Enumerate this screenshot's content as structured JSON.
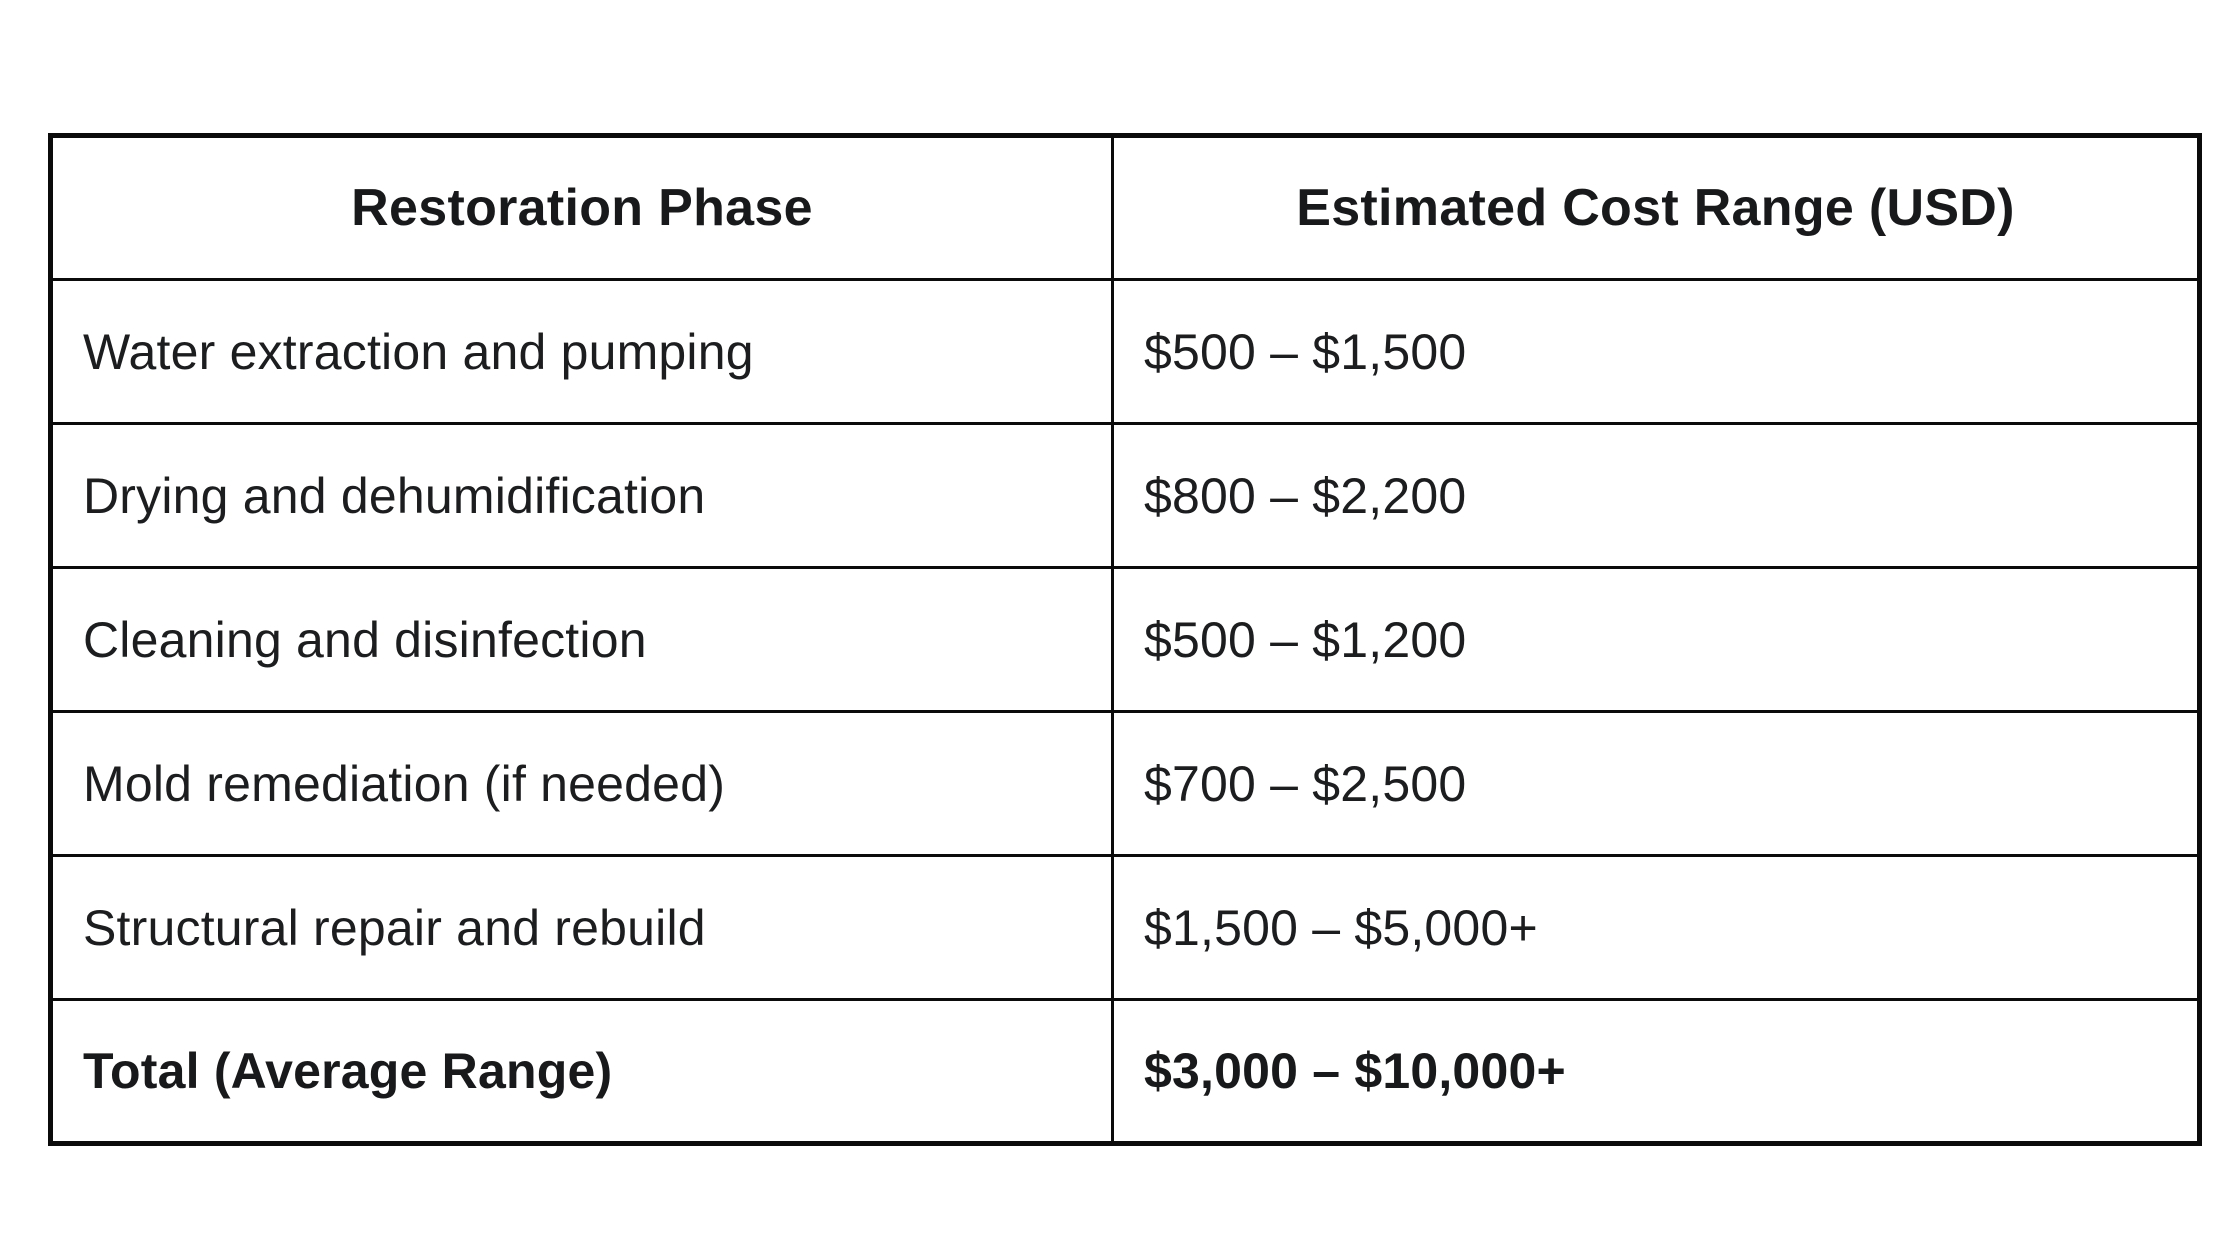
{
  "table": {
    "header": [
      "Restoration Phase",
      "Estimated Cost Range (USD)"
    ],
    "rows": [
      {
        "phase": "Water extraction and pumping",
        "cost": "$500 – $1,500"
      },
      {
        "phase": "Drying and dehumidification",
        "cost": "$800 – $2,200"
      },
      {
        "phase": "Cleaning and disinfection",
        "cost": "$500 – $1,200"
      },
      {
        "phase": "Mold remediation (if needed)",
        "cost": "$700 – $2,500"
      },
      {
        "phase": "Structural repair and rebuild",
        "cost": "$1,500 – $5,000+"
      },
      {
        "phase": "Total (Average Range)",
        "cost": "$3,000 – $10,000+"
      }
    ]
  },
  "colors": {
    "border": "#0b0b0b",
    "text": "#1c1d1f",
    "background": "#ffffff"
  }
}
